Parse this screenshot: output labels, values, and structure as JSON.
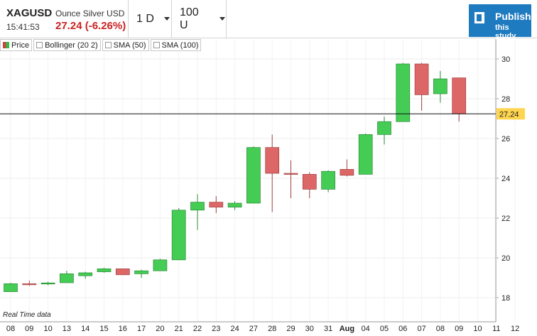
{
  "header": {
    "symbol": "XAGUSD",
    "description": "Ounce Silver USD",
    "time": "15:41:53",
    "price_change": "27.24 (-6.26%)",
    "interval": "1 D",
    "units": "100 U",
    "publish_line1": "Publish",
    "publish_line2": "this study"
  },
  "legend": {
    "price": "Price",
    "bollinger": "Bollinger (20 2)",
    "sma50": "SMA (50)",
    "sma100": "SMA (100)"
  },
  "footer": {
    "realtime": "Real Time data"
  },
  "colors": {
    "up": "#44cc55",
    "down": "#dd6666",
    "publish": "#1f7bc0",
    "last_price_label": "#ffd54f"
  },
  "chart_data": {
    "type": "candlestick",
    "y_ticks": [
      18,
      20,
      22,
      24,
      26,
      28,
      30
    ],
    "ylim": [
      17,
      31
    ],
    "last_price": 27.24,
    "last_price_label": "27.24",
    "grid": true,
    "candles": [
      {
        "label": "08",
        "o": 18.3,
        "h": 18.75,
        "l": 18.3,
        "c": 18.7
      },
      {
        "label": "09",
        "o": 18.7,
        "h": 18.85,
        "l": 18.6,
        "c": 18.68
      },
      {
        "label": "10",
        "o": 18.72,
        "h": 18.8,
        "l": 18.62,
        "c": 18.74
      },
      {
        "label": "13",
        "o": 18.75,
        "h": 19.35,
        "l": 18.75,
        "c": 19.2
      },
      {
        "label": "14",
        "o": 19.1,
        "h": 19.3,
        "l": 18.95,
        "c": 19.25
      },
      {
        "label": "15",
        "o": 19.3,
        "h": 19.5,
        "l": 19.25,
        "c": 19.45
      },
      {
        "label": "16",
        "o": 19.45,
        "h": 19.45,
        "l": 19.15,
        "c": 19.15
      },
      {
        "label": "17",
        "o": 19.2,
        "h": 19.4,
        "l": 19.0,
        "c": 19.35
      },
      {
        "label": "20",
        "o": 19.35,
        "h": 19.95,
        "l": 19.35,
        "c": 19.9
      },
      {
        "label": "21",
        "o": 19.9,
        "h": 22.5,
        "l": 19.9,
        "c": 22.4
      },
      {
        "label": "22",
        "o": 22.4,
        "h": 23.2,
        "l": 21.4,
        "c": 22.8
      },
      {
        "label": "23",
        "o": 22.8,
        "h": 23.1,
        "l": 22.25,
        "c": 22.55
      },
      {
        "label": "24",
        "o": 22.55,
        "h": 22.85,
        "l": 22.4,
        "c": 22.75
      },
      {
        "label": "27",
        "o": 22.75,
        "h": 25.6,
        "l": 22.75,
        "c": 25.55
      },
      {
        "label": "28",
        "o": 25.55,
        "h": 26.2,
        "l": 22.3,
        "c": 24.25
      },
      {
        "label": "29",
        "o": 24.25,
        "h": 24.9,
        "l": 23.0,
        "c": 24.2
      },
      {
        "label": "30",
        "o": 24.2,
        "h": 24.3,
        "l": 23.0,
        "c": 23.45
      },
      {
        "label": "31",
        "o": 23.45,
        "h": 24.4,
        "l": 23.3,
        "c": 24.35
      },
      {
        "label": "Aug",
        "o": 24.45,
        "h": 24.95,
        "l": 24.1,
        "c": 24.15
      },
      {
        "label": "04",
        "o": 24.2,
        "h": 26.25,
        "l": 24.2,
        "c": 26.2
      },
      {
        "label": "05",
        "o": 26.2,
        "h": 27.1,
        "l": 25.7,
        "c": 26.85
      },
      {
        "label": "06",
        "o": 26.85,
        "h": 29.8,
        "l": 26.85,
        "c": 29.75
      },
      {
        "label": "07",
        "o": 29.75,
        "h": 29.8,
        "l": 27.4,
        "c": 28.2
      },
      {
        "label": "10",
        "o": 28.25,
        "h": 29.4,
        "l": 27.8,
        "c": 29.0
      },
      {
        "label": "11",
        "o": 29.05,
        "h": 29.05,
        "l": 26.85,
        "c": 27.24
      }
    ],
    "x_labels": [
      "08",
      "09",
      "10",
      "13",
      "14",
      "15",
      "16",
      "17",
      "20",
      "21",
      "22",
      "23",
      "24",
      "27",
      "28",
      "29",
      "30",
      "31",
      "Aug",
      "04",
      "05",
      "06",
      "07",
      "08",
      "09",
      "10",
      "11",
      "12"
    ]
  }
}
